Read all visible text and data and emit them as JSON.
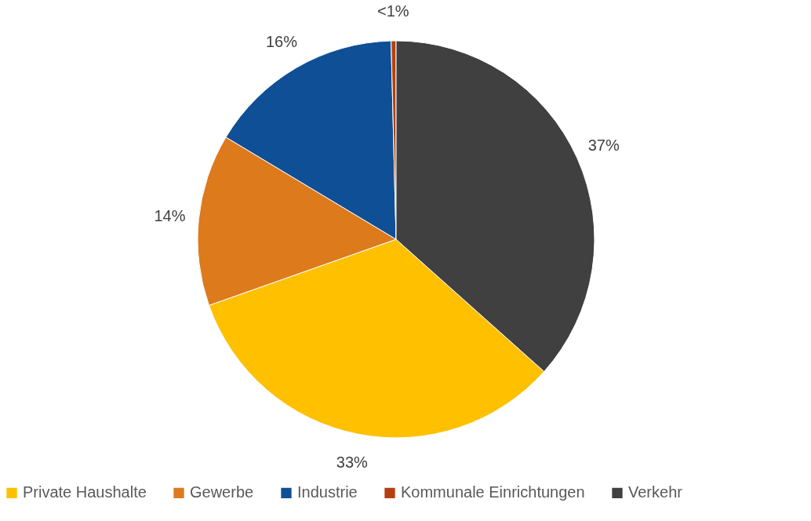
{
  "chart_data": {
    "type": "pie",
    "categories": [
      "Private Haushalte",
      "Gewerbe",
      "Industrie",
      "Kommunale Einrichtungen",
      "Verkehr"
    ],
    "values": [
      33,
      14,
      16,
      0.4,
      36.6
    ],
    "colors": [
      "#ffc000",
      "#dc7a1c",
      "#0f4f96",
      "#b5400f",
      "#404040"
    ],
    "value_labels": [
      "33%",
      "14%",
      "16%",
      "<1%",
      "37%"
    ],
    "legend": "bottom"
  }
}
